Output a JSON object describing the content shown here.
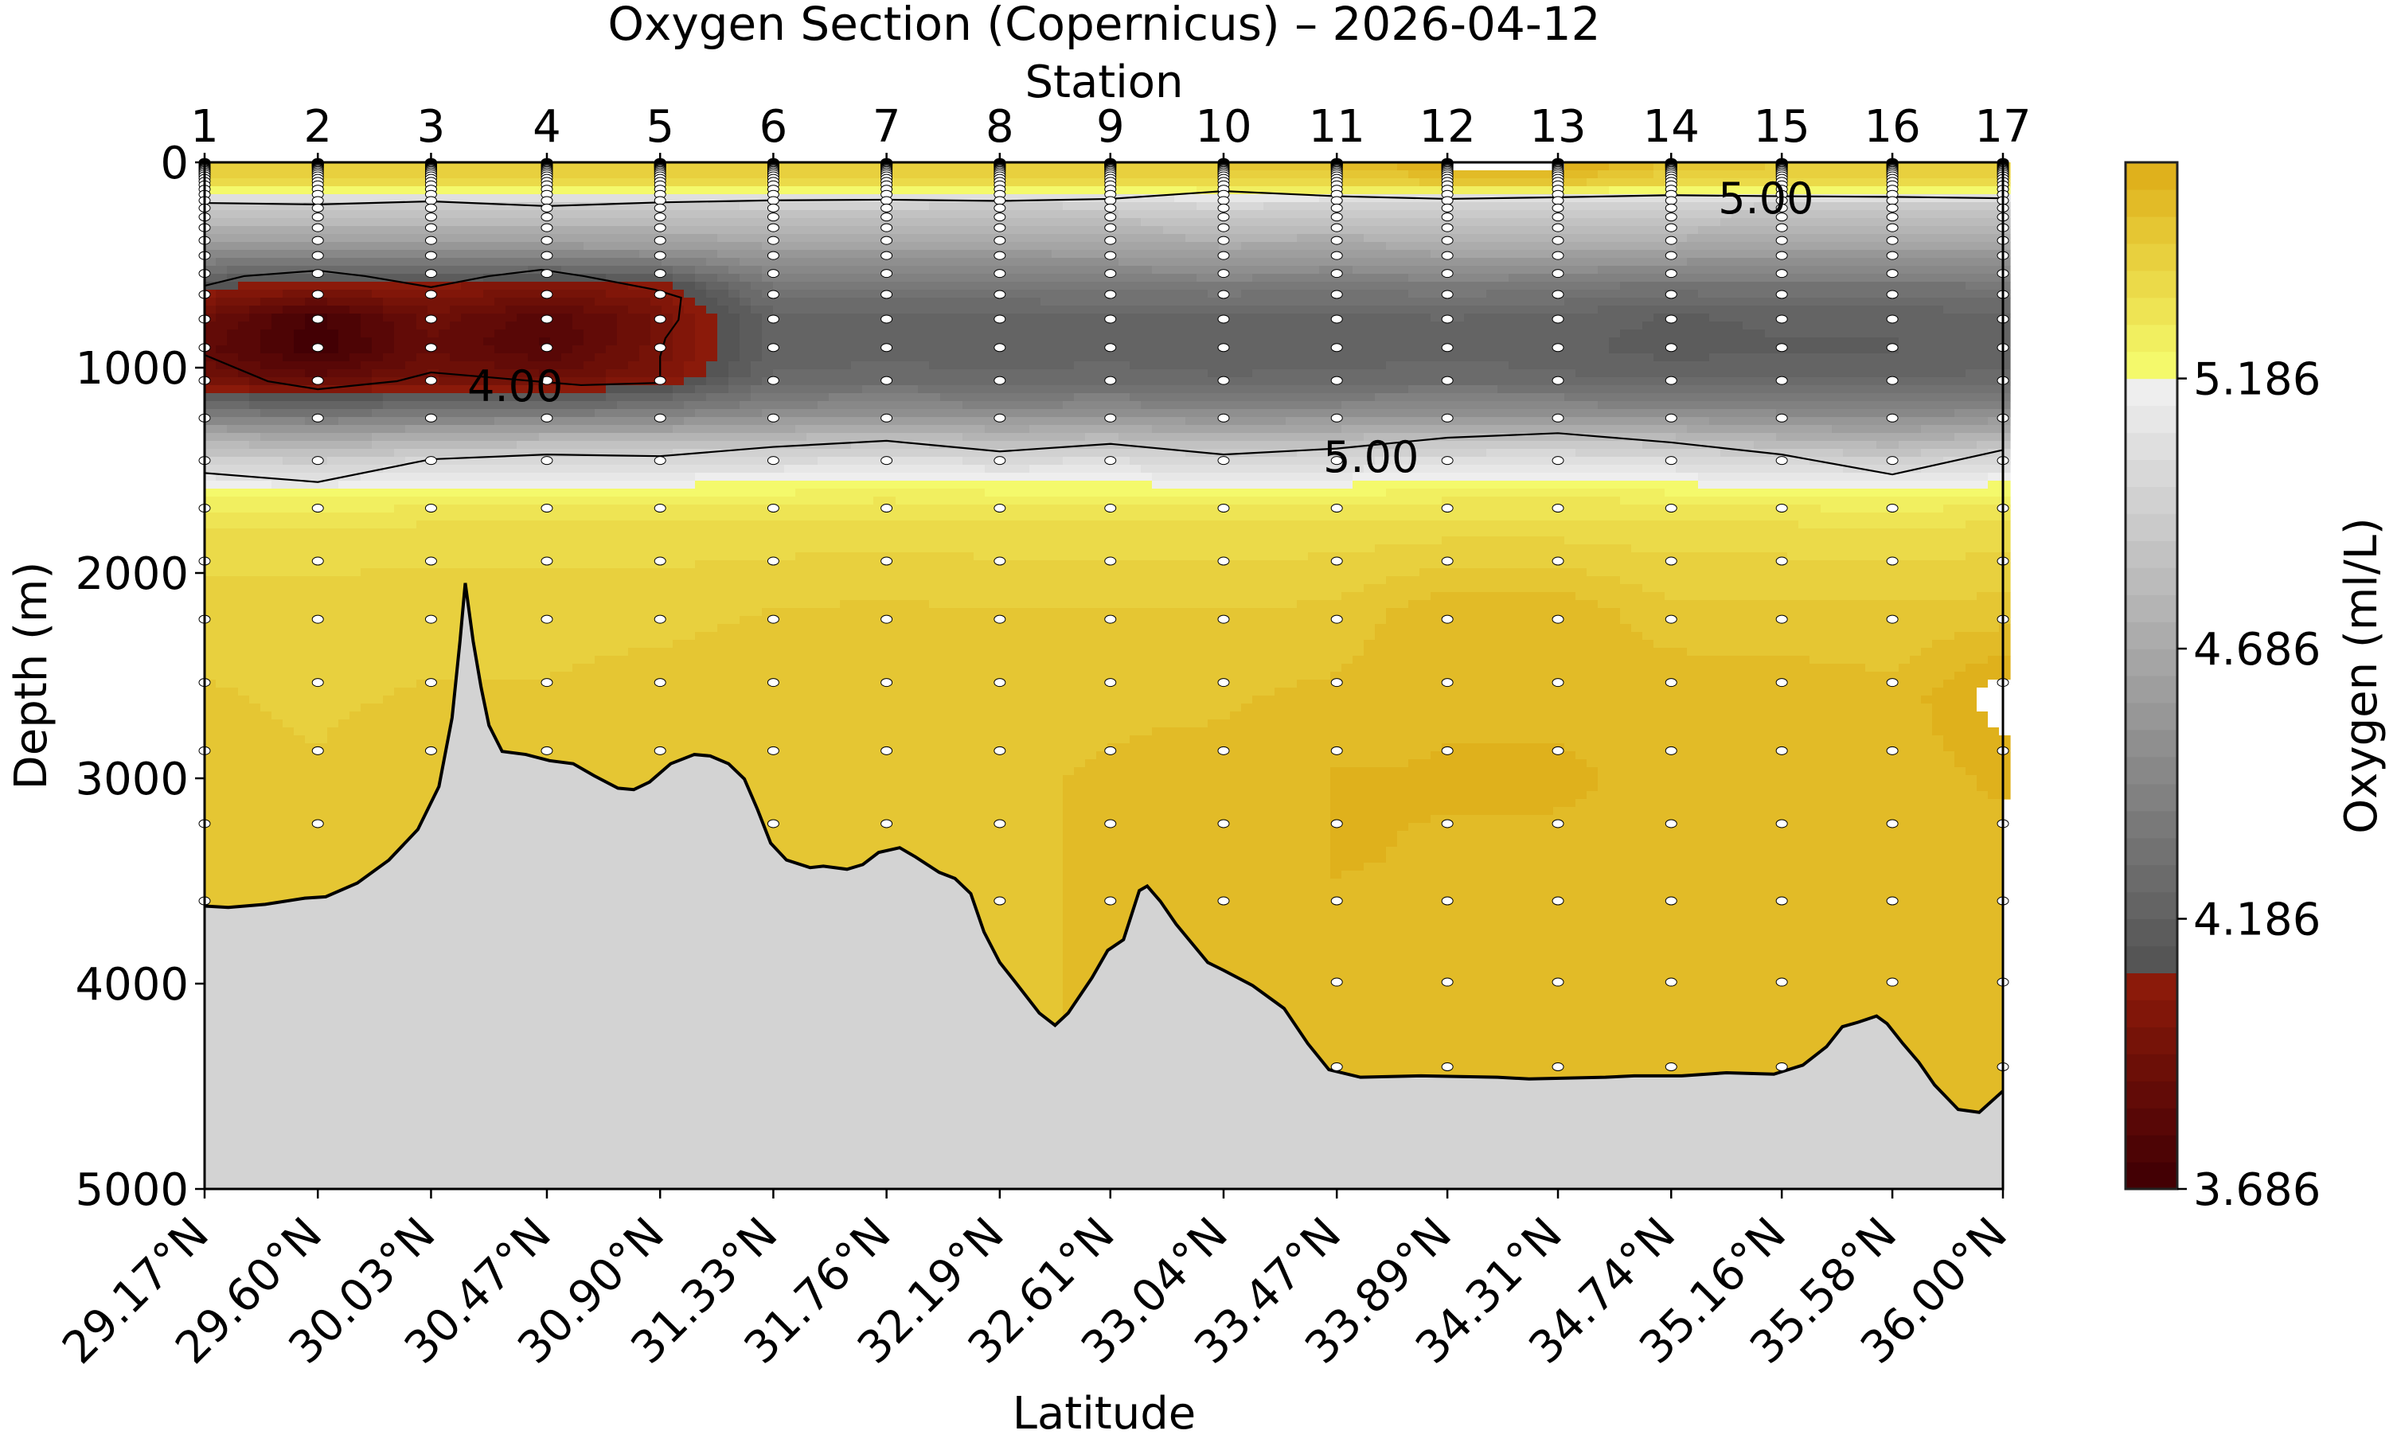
{
  "chart_data": {
    "type": "contourf",
    "title": "Oxygen Section (Copernicus) – 2026-04-12",
    "top_axis_label": "Station",
    "xlabel": "Latitude",
    "ylabel": "Depth (m)",
    "colorbar_label": "Oxygen (ml/L)",
    "stations": [
      "1",
      "2",
      "3",
      "4",
      "5",
      "6",
      "7",
      "8",
      "9",
      "10",
      "11",
      "12",
      "13",
      "14",
      "15",
      "16",
      "17"
    ],
    "latitude_values": [
      29.17,
      29.6,
      30.03,
      30.47,
      30.9,
      31.33,
      31.76,
      32.19,
      32.61,
      33.04,
      33.47,
      33.89,
      34.31,
      34.74,
      35.16,
      35.58,
      36.0
    ],
    "latitude_labels": [
      "29.17°N",
      "29.60°N",
      "30.03°N",
      "30.47°N",
      "30.90°N",
      "31.33°N",
      "31.76°N",
      "32.19°N",
      "32.61°N",
      "33.04°N",
      "33.47°N",
      "33.89°N",
      "34.31°N",
      "34.74°N",
      "35.16°N",
      "35.58°N",
      "36.00°N"
    ],
    "ylim": [
      5000,
      0
    ],
    "yticks": [
      0,
      1000,
      2000,
      3000,
      4000,
      5000
    ],
    "ytick_labels": [
      "0",
      "1000",
      "2000",
      "3000",
      "4000",
      "5000"
    ],
    "colorbar": {
      "min": 3.686,
      "max": 5.586,
      "level_step": 0.05,
      "ticks": [
        3.686,
        4.186,
        4.686,
        5.186
      ],
      "tick_labels": [
        "3.686",
        "4.186",
        "4.686",
        "5.186"
      ],
      "segments": [
        {
          "from": 3.686,
          "to": 4.086,
          "color_low": "#430004",
          "color_high": "#8b1a0a"
        },
        {
          "from": 4.086,
          "to": 5.186,
          "color_low": "#555555",
          "color_high": "#eeeeee"
        },
        {
          "from": 5.186,
          "to": 5.586,
          "color_low": "#f4f96b",
          "color_high": "#dfb11c"
        }
      ],
      "over_color": "#ffffff"
    },
    "seafloor_color": "#d3d3d3",
    "depth_grid": [
      0,
      100,
      150,
      200,
      400,
      600,
      750,
      900,
      1050,
      1200,
      1350,
      1450,
      1550,
      1650,
      1800,
      2200,
      2600,
      3000,
      3400,
      3800,
      4200,
      4600
    ],
    "oxygen": [
      [
        5.45,
        5.35,
        5.15,
        4.95,
        4.6,
        4.1,
        3.9,
        3.85,
        3.92,
        4.3,
        4.75,
        4.95,
        5.12,
        5.25,
        5.35,
        5.42,
        5.44,
        5.45,
        5.45,
        5.45,
        5.45,
        5.45
      ],
      [
        5.45,
        5.35,
        5.15,
        4.95,
        4.6,
        4.05,
        3.72,
        3.7,
        3.85,
        4.25,
        4.7,
        4.92,
        5.1,
        5.25,
        5.35,
        5.42,
        5.43,
        5.44,
        5.45,
        5.45,
        5.45,
        5.45
      ],
      [
        5.45,
        5.35,
        5.15,
        4.95,
        4.6,
        4.05,
        3.92,
        3.88,
        3.95,
        4.3,
        4.75,
        5.0,
        5.15,
        5.27,
        5.36,
        5.42,
        5.44,
        5.46,
        5.46,
        5.46,
        5.46,
        5.46
      ],
      [
        5.45,
        5.35,
        5.15,
        4.95,
        4.6,
        4.0,
        3.8,
        3.78,
        3.9,
        4.3,
        4.78,
        5.02,
        5.16,
        5.28,
        5.36,
        5.42,
        5.44,
        5.46,
        5.46,
        5.46,
        5.46,
        5.46
      ],
      [
        5.45,
        5.35,
        5.15,
        4.95,
        4.62,
        4.05,
        3.95,
        3.96,
        3.99,
        4.35,
        4.78,
        5.02,
        5.16,
        5.28,
        5.36,
        5.42,
        5.46,
        5.48,
        5.48,
        5.48,
        5.48,
        5.48
      ],
      [
        5.45,
        5.35,
        5.15,
        4.96,
        4.65,
        4.35,
        4.22,
        4.2,
        4.25,
        4.45,
        4.8,
        5.02,
        5.17,
        5.28,
        5.36,
        5.44,
        5.48,
        5.48,
        5.48,
        5.48,
        5.48,
        5.48
      ],
      [
        5.45,
        5.35,
        5.15,
        4.96,
        4.65,
        4.35,
        4.22,
        4.21,
        4.26,
        4.48,
        4.85,
        5.05,
        5.18,
        5.29,
        5.37,
        5.45,
        5.48,
        5.48,
        5.48,
        5.48,
        5.48,
        5.48
      ],
      [
        5.45,
        5.35,
        5.15,
        4.95,
        4.65,
        4.35,
        4.22,
        4.2,
        4.25,
        4.45,
        4.8,
        5.02,
        5.17,
        5.28,
        5.36,
        5.44,
        5.48,
        5.48,
        5.48,
        5.48,
        5.48,
        5.48
      ],
      [
        5.45,
        5.35,
        5.15,
        4.96,
        4.66,
        4.36,
        4.23,
        4.21,
        4.26,
        4.47,
        4.82,
        5.04,
        5.17,
        5.28,
        5.36,
        5.44,
        5.48,
        5.49,
        5.49,
        5.49,
        5.49,
        5.49
      ],
      [
        5.45,
        5.36,
        5.2,
        5.02,
        4.7,
        4.38,
        4.22,
        4.2,
        4.24,
        4.44,
        4.78,
        5.0,
        5.15,
        5.27,
        5.36,
        5.44,
        5.48,
        5.5,
        5.5,
        5.5,
        5.5,
        5.5
      ],
      [
        5.5,
        5.38,
        5.18,
        4.98,
        4.68,
        4.36,
        4.22,
        4.2,
        4.25,
        4.46,
        4.8,
        5.02,
        5.16,
        5.28,
        5.36,
        5.45,
        5.5,
        5.54,
        5.54,
        5.52,
        5.5,
        5.5
      ],
      [
        5.62,
        5.45,
        5.18,
        4.98,
        4.72,
        4.38,
        4.24,
        4.22,
        4.26,
        4.48,
        4.86,
        5.05,
        5.18,
        5.29,
        5.37,
        5.53,
        5.53,
        5.54,
        5.53,
        5.53,
        5.53,
        5.53
      ],
      [
        5.62,
        5.45,
        5.17,
        4.97,
        4.72,
        4.36,
        4.22,
        4.2,
        4.25,
        4.47,
        4.87,
        5.06,
        5.19,
        5.3,
        5.37,
        5.53,
        5.53,
        5.54,
        5.53,
        5.53,
        5.53,
        5.53
      ],
      [
        5.48,
        5.38,
        5.15,
        4.97,
        4.7,
        4.32,
        4.18,
        4.16,
        4.22,
        4.45,
        4.82,
        5.03,
        5.17,
        5.28,
        5.36,
        5.45,
        5.53,
        5.53,
        5.53,
        5.52,
        5.52,
        5.52
      ],
      [
        5.45,
        5.35,
        5.15,
        4.95,
        4.66,
        4.33,
        4.2,
        4.18,
        4.23,
        4.44,
        4.76,
        4.99,
        5.14,
        5.27,
        5.36,
        5.45,
        5.52,
        5.52,
        5.52,
        5.52,
        5.52,
        5.52
      ],
      [
        5.45,
        5.35,
        5.15,
        4.95,
        4.65,
        4.33,
        4.2,
        4.18,
        4.23,
        4.42,
        4.72,
        4.95,
        5.12,
        5.25,
        5.35,
        5.45,
        5.5,
        5.5,
        5.5,
        5.5,
        5.5,
        5.5
      ],
      [
        5.45,
        5.35,
        5.15,
        4.95,
        4.65,
        4.34,
        4.22,
        4.21,
        4.25,
        4.46,
        4.8,
        5.02,
        5.17,
        5.28,
        5.36,
        5.46,
        5.62,
        5.55,
        5.5,
        5.5,
        5.5,
        5.5
      ]
    ],
    "sample_depths": [
      0.49,
      1.54,
      2.65,
      3.82,
      5.08,
      6.44,
      7.93,
      9.57,
      11.41,
      13.47,
      15.81,
      18.5,
      21.6,
      25.21,
      29.44,
      34.43,
      40.34,
      47.37,
      55.76,
      65.81,
      77.85,
      92.33,
      109.73,
      130.67,
      155.85,
      186.13,
      222.48,
      266.04,
      318.13,
      380.21,
      453.94,
      541.09,
      643.57,
      763.33,
      902.34,
      1062.44,
      1245.29,
      1452.25,
      1684.28,
      1941.89,
      2225.08,
      2533.34,
      2865.7,
      3220.82,
      3597.03,
      3992.48,
      4405.22
    ],
    "bathymetry": [
      [
        29.17,
        3622
      ],
      [
        29.26,
        3629
      ],
      [
        29.4,
        3614
      ],
      [
        29.55,
        3584
      ],
      [
        29.63,
        3577
      ],
      [
        29.75,
        3510
      ],
      [
        29.87,
        3398
      ],
      [
        29.98,
        3249
      ],
      [
        30.06,
        3040
      ],
      [
        30.11,
        2705
      ],
      [
        30.14,
        2332
      ],
      [
        30.16,
        2049
      ],
      [
        30.19,
        2332
      ],
      [
        30.22,
        2556
      ],
      [
        30.25,
        2742
      ],
      [
        30.3,
        2869
      ],
      [
        30.39,
        2884
      ],
      [
        30.48,
        2914
      ],
      [
        30.57,
        2929
      ],
      [
        30.65,
        2988
      ],
      [
        30.74,
        3048
      ],
      [
        30.8,
        3055
      ],
      [
        30.86,
        3018
      ],
      [
        30.94,
        2929
      ],
      [
        31.03,
        2884
      ],
      [
        31.09,
        2891
      ],
      [
        31.16,
        2929
      ],
      [
        31.22,
        3003
      ],
      [
        31.27,
        3152
      ],
      [
        31.32,
        3316
      ],
      [
        31.38,
        3398
      ],
      [
        31.47,
        3435
      ],
      [
        31.52,
        3428
      ],
      [
        31.61,
        3443
      ],
      [
        31.67,
        3420
      ],
      [
        31.73,
        3361
      ],
      [
        31.81,
        3338
      ],
      [
        31.87,
        3383
      ],
      [
        31.96,
        3458
      ],
      [
        32.02,
        3488
      ],
      [
        32.08,
        3562
      ],
      [
        32.13,
        3748
      ],
      [
        32.19,
        3897
      ],
      [
        32.25,
        3994
      ],
      [
        32.34,
        4143
      ],
      [
        32.4,
        4203
      ],
      [
        32.45,
        4143
      ],
      [
        32.54,
        3972
      ],
      [
        32.6,
        3838
      ],
      [
        32.66,
        3786
      ],
      [
        32.72,
        3547
      ],
      [
        32.75,
        3525
      ],
      [
        32.8,
        3599
      ],
      [
        32.86,
        3711
      ],
      [
        32.98,
        3897
      ],
      [
        33.04,
        3935
      ],
      [
        33.15,
        4009
      ],
      [
        33.27,
        4121
      ],
      [
        33.36,
        4292
      ],
      [
        33.44,
        4419
      ],
      [
        33.56,
        4456
      ],
      [
        33.79,
        4449
      ],
      [
        34.08,
        4456
      ],
      [
        34.2,
        4464
      ],
      [
        34.49,
        4456
      ],
      [
        34.6,
        4449
      ],
      [
        34.78,
        4449
      ],
      [
        34.95,
        4434
      ],
      [
        35.13,
        4441
      ],
      [
        35.24,
        4397
      ],
      [
        35.33,
        4307
      ],
      [
        35.39,
        4210
      ],
      [
        35.45,
        4188
      ],
      [
        35.52,
        4158
      ],
      [
        35.56,
        4195
      ],
      [
        35.62,
        4292
      ],
      [
        35.68,
        4382
      ],
      [
        35.74,
        4493
      ],
      [
        35.83,
        4613
      ],
      [
        35.91,
        4627
      ],
      [
        36.0,
        4523
      ]
    ],
    "contours": [
      {
        "level": 5.0,
        "points": [
          [
            29.17,
            198
          ],
          [
            29.6,
            205
          ],
          [
            30.03,
            190
          ],
          [
            30.47,
            213
          ],
          [
            30.9,
            195
          ],
          [
            31.33,
            185
          ],
          [
            31.76,
            182
          ],
          [
            32.19,
            188
          ],
          [
            32.61,
            178
          ],
          [
            33.04,
            140
          ],
          [
            33.47,
            165
          ],
          [
            33.89,
            178
          ],
          [
            34.31,
            170
          ],
          [
            34.74,
            160
          ],
          [
            35.16,
            165
          ],
          [
            35.58,
            168
          ],
          [
            36.0,
            175
          ]
        ]
      },
      {
        "level": 5.0,
        "points": [
          [
            29.17,
            1513
          ],
          [
            29.6,
            1557
          ],
          [
            30.03,
            1446
          ],
          [
            30.47,
            1423
          ],
          [
            30.9,
            1431
          ],
          [
            31.33,
            1386
          ],
          [
            31.76,
            1356
          ],
          [
            32.19,
            1408
          ],
          [
            32.61,
            1371
          ],
          [
            33.04,
            1423
          ],
          [
            33.47,
            1394
          ],
          [
            33.89,
            1341
          ],
          [
            34.31,
            1319
          ],
          [
            34.74,
            1364
          ],
          [
            35.16,
            1423
          ],
          [
            35.58,
            1520
          ],
          [
            36.0,
            1401
          ]
        ]
      },
      {
        "level": 4.0,
        "points": [
          [
            29.17,
            601
          ],
          [
            29.32,
            554
          ],
          [
            29.6,
            527
          ],
          [
            29.78,
            554
          ],
          [
            30.03,
            608
          ],
          [
            30.25,
            554
          ],
          [
            30.45,
            523
          ],
          [
            30.61,
            554
          ],
          [
            30.88,
            620
          ],
          [
            30.98,
            659
          ],
          [
            30.97,
            767
          ],
          [
            30.92,
            857
          ],
          [
            30.9,
            946
          ],
          [
            30.9,
            1074
          ],
          [
            30.6,
            1085
          ],
          [
            30.03,
            1023
          ],
          [
            29.9,
            1066
          ],
          [
            29.6,
            1105
          ],
          [
            29.41,
            1066
          ],
          [
            29.17,
            938
          ]
        ]
      }
    ],
    "contour_labels": [
      {
        "text": "5.00",
        "lat": 35.1,
        "depth": 170
      },
      {
        "text": "5.00",
        "lat": 33.6,
        "depth": 1430
      },
      {
        "text": "4.00",
        "lat": 30.35,
        "depth": 1085
      }
    ]
  }
}
